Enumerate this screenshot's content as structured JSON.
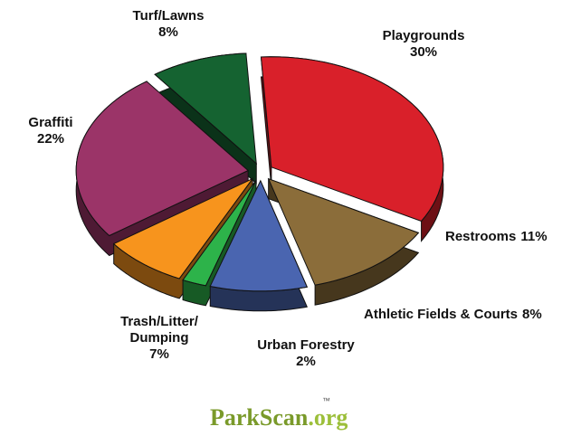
{
  "chart_data": {
    "type": "pie",
    "categories": [
      "Playgrounds",
      "Restrooms",
      "Athletic Fields & Courts",
      "Urban Forestry",
      "Trash/Litter/Dumping",
      "Graffiti",
      "Turf/Lawns"
    ],
    "values": [
      30,
      11,
      8,
      2,
      7,
      22,
      8
    ],
    "value_labels": [
      "30%",
      "11%",
      "8%",
      "2%",
      "7%",
      "22%",
      "8%"
    ],
    "colors": [
      "#d9202a",
      "#8b6d3a",
      "#4a65b0",
      "#2db34a",
      "#f7941d",
      "#9b3468",
      "#156331"
    ]
  },
  "footer": {
    "brand": "ParkScan",
    "tld": ".org",
    "tm": "™"
  }
}
